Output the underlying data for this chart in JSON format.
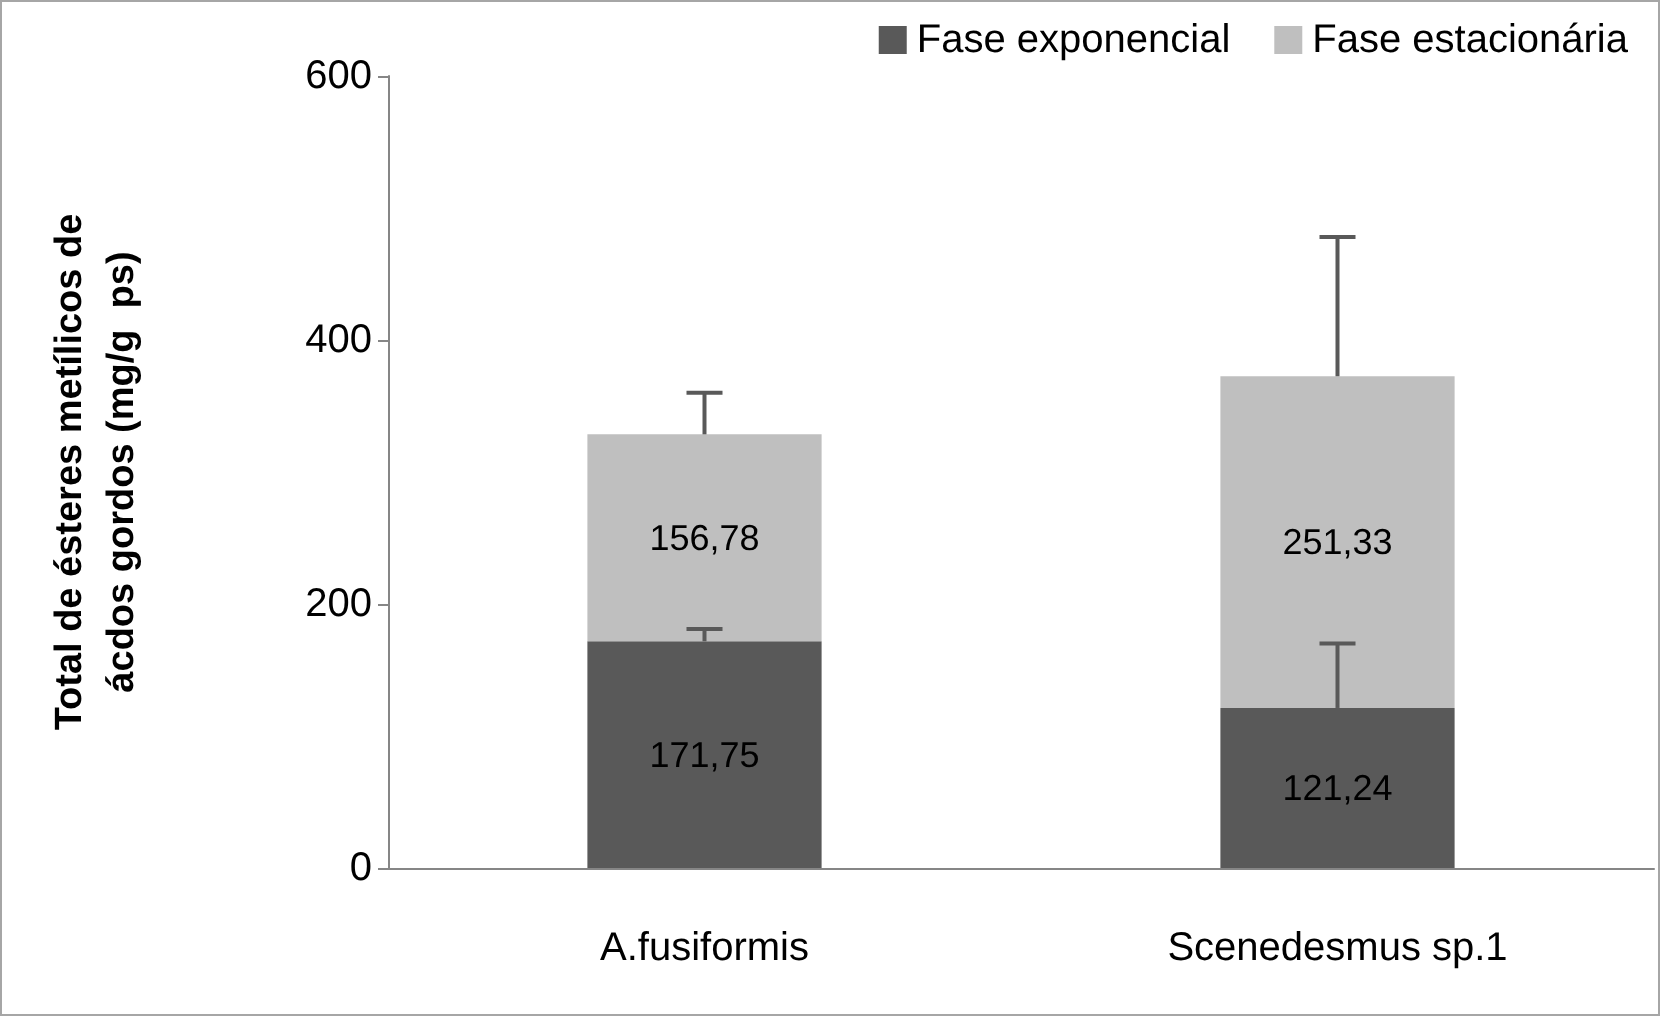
{
  "chart_data": {
    "type": "bar",
    "stacked": true,
    "ylabel": "Total de ésteres metílicos de\nácdos gordos (mg/g  ps)",
    "categories": [
      "A.fusiformis",
      "Scenedesmus sp.1"
    ],
    "series": [
      {
        "name": "Fase exponencial",
        "color": "#595959",
        "values": [
          171.75,
          121.24
        ],
        "value_labels": [
          "171,75",
          "121,24"
        ],
        "errors": [
          [
            171.75,
            181
          ],
          [
            121.24,
            170
          ]
        ]
      },
      {
        "name": "Fase estacionária",
        "color": "#bfbfbf",
        "values": [
          156.78,
          251.33
        ],
        "value_labels": [
          "156,78",
          "251,33"
        ],
        "errors": [
          [
            328.53,
            360
          ],
          [
            372.57,
            478
          ]
        ]
      }
    ],
    "ylim": [
      0,
      600
    ],
    "yticks": [
      0,
      200,
      400,
      600
    ],
    "grid": false,
    "legend": "top right"
  }
}
